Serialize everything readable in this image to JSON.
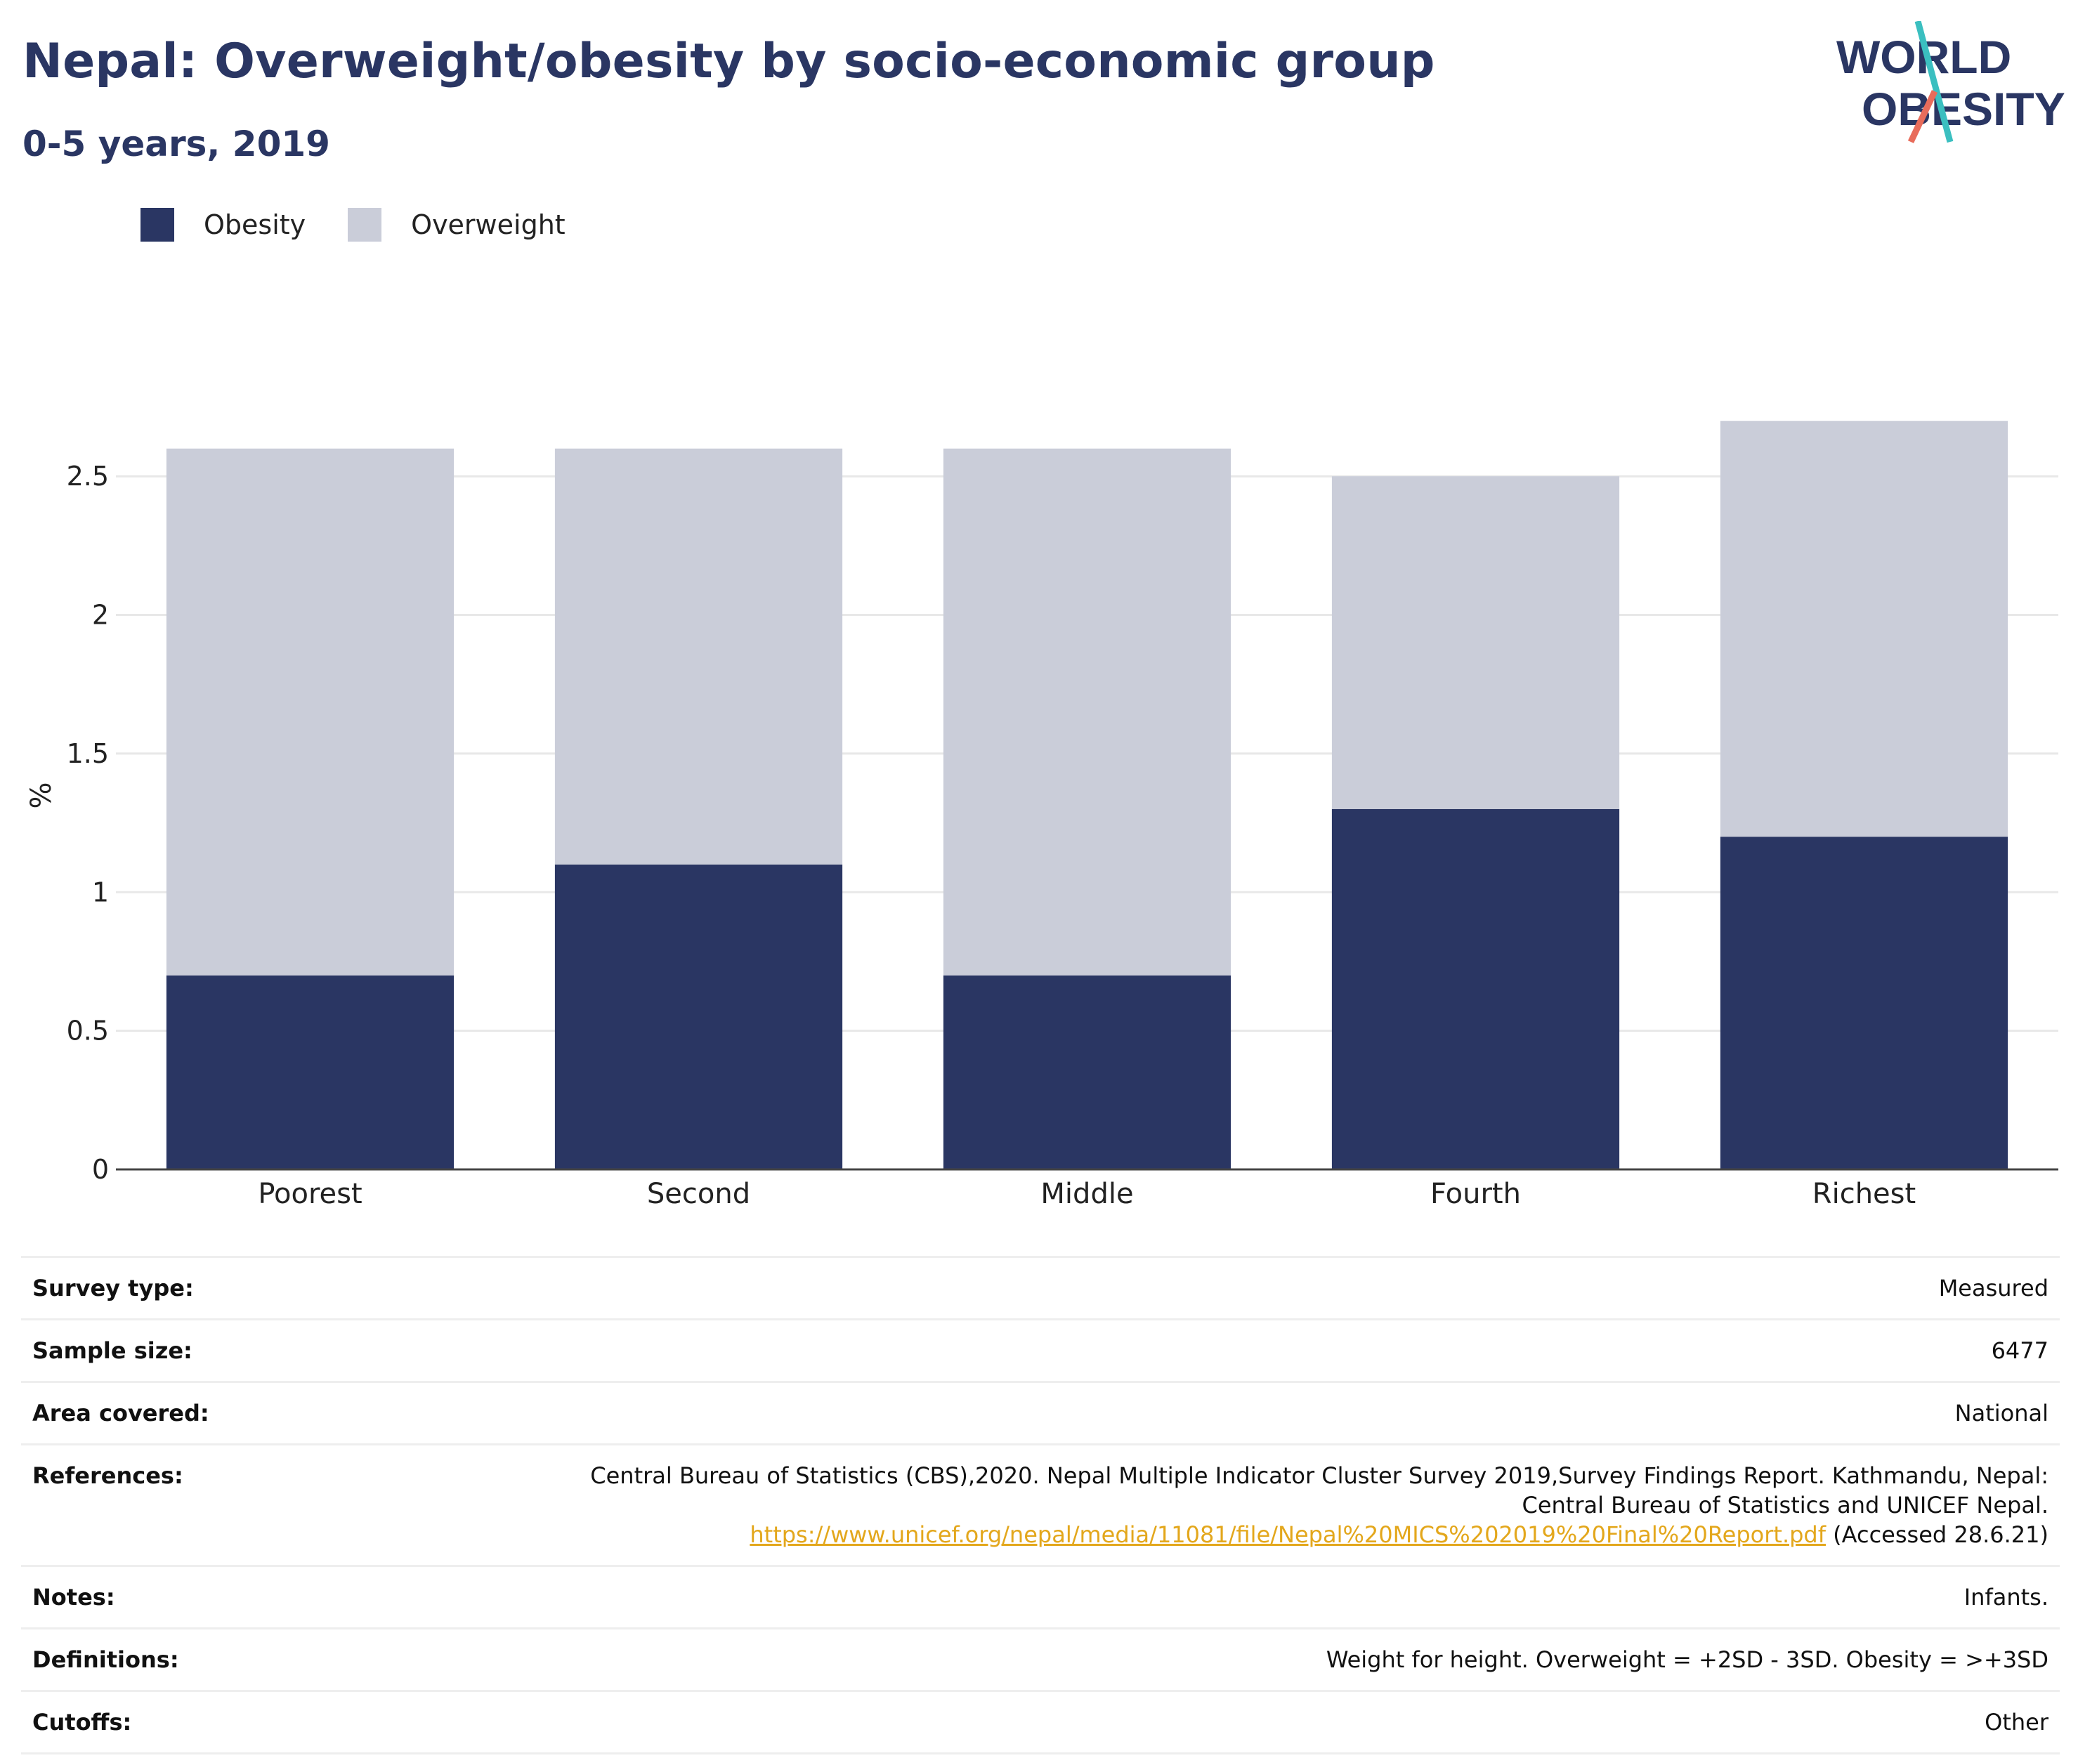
{
  "header": {
    "title": "Nepal: Overweight/obesity by socio-economic group",
    "subtitle": "0-5 years, 2019"
  },
  "logo": {
    "line1": "WORLD",
    "line2": "OBESITY"
  },
  "legend": [
    {
      "label": "Obesity",
      "color": "#2a3663"
    },
    {
      "label": "Overweight",
      "color": "#cacdd9"
    }
  ],
  "chart_data": {
    "type": "bar",
    "stacked": true,
    "categories": [
      "Poorest",
      "Second",
      "Middle",
      "Fourth",
      "Richest"
    ],
    "series": [
      {
        "name": "Obesity",
        "values": [
          0.7,
          1.1,
          0.7,
          1.3,
          1.2
        ],
        "color": "#2a3663"
      },
      {
        "name": "Overweight",
        "values": [
          1.9,
          1.5,
          1.9,
          1.2,
          1.5
        ],
        "color": "#cacdd9"
      }
    ],
    "ylabel": "%",
    "ylim": [
      0,
      2.85
    ],
    "yticks": [
      0,
      0.5,
      1,
      1.5,
      2,
      2.5
    ],
    "ytick_labels": [
      "0",
      "0.5",
      "1",
      "1.5",
      "2",
      "2.5"
    ],
    "grid": true,
    "legend_position": "top-left"
  },
  "info": {
    "survey_type": {
      "label": "Survey type:",
      "value": "Measured"
    },
    "sample_size": {
      "label": "Sample size:",
      "value": "6477"
    },
    "area_covered": {
      "label": "Area covered:",
      "value": "National"
    },
    "references": {
      "label": "References:",
      "line1": "Central Bureau of Statistics (CBS),2020. Nepal Multiple Indicator Cluster Survey 2019,Survey Findings Report. Kathmandu, Nepal:",
      "line2": "Central Bureau of Statistics and UNICEF Nepal.",
      "link": "https://www.unicef.org/nepal/media/11081/file/Nepal%20MICS%202019%20Final%20Report.pdf",
      "accessed": " (Accessed 28.6.21)"
    },
    "notes": {
      "label": "Notes:",
      "value": "Infants."
    },
    "definitions": {
      "label": "Definitions:",
      "value": "Weight for height. Overweight = +2SD - 3SD. Obesity = >+3SD"
    },
    "cutoffs": {
      "label": "Cutoffs:",
      "value": "Other"
    }
  }
}
